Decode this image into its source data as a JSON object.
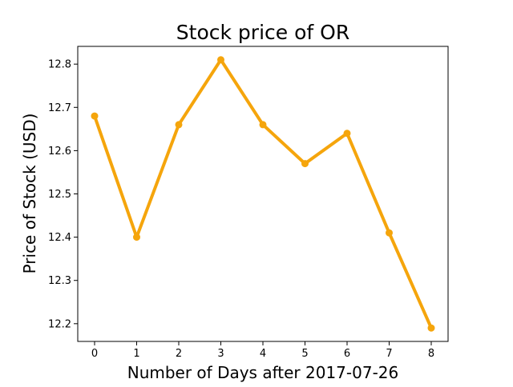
{
  "chart_data": {
    "type": "line",
    "title": "Stock price of OR",
    "xlabel": "Number of Days after 2017-07-26",
    "ylabel": "Price of Stock (USD)",
    "x": [
      0,
      1,
      2,
      3,
      4,
      5,
      6,
      7,
      8
    ],
    "series": [
      {
        "values": [
          12.68,
          12.4,
          12.66,
          12.81,
          12.66,
          12.57,
          12.64,
          12.41,
          12.19
        ],
        "color": "#f5a50c",
        "marker": "circle"
      }
    ],
    "xticks": [
      "0",
      "1",
      "2",
      "3",
      "4",
      "5",
      "6",
      "7",
      "8"
    ],
    "yticks": [
      "12.2",
      "12.3",
      "12.4",
      "12.5",
      "12.6",
      "12.7",
      "12.8"
    ],
    "xlim": [
      -0.4,
      8.4
    ],
    "ylim": [
      12.159,
      12.841
    ],
    "grid": false,
    "legend": false
  }
}
